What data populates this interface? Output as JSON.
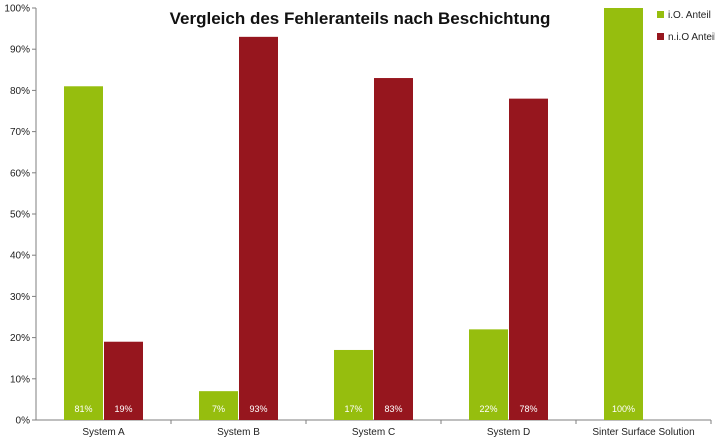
{
  "chart_data": {
    "type": "bar",
    "title": "Vergleich des Fehleranteils nach Beschichtung",
    "categories": [
      "System A",
      "System B",
      "System C",
      "System D",
      "Sinter Surface Solution"
    ],
    "series": [
      {
        "name": "i.O. Anteil",
        "color": "#96be0e",
        "values": [
          81,
          7,
          17,
          22,
          100
        ],
        "labels": [
          "81%",
          "7%",
          "17%",
          "22%",
          "100%"
        ]
      },
      {
        "name": "n.i.O Anteil",
        "color": "#96161e",
        "values": [
          19,
          93,
          83,
          78,
          0
        ],
        "labels": [
          "19%",
          "93%",
          "83%",
          "78%",
          ""
        ]
      }
    ],
    "ylim": [
      0,
      100
    ],
    "yticks": [
      "0%",
      "10%",
      "20%",
      "30%",
      "40%",
      "50%",
      "60%",
      "70%",
      "80%",
      "90%",
      "100%"
    ],
    "grid": false,
    "legend": "top-right"
  }
}
